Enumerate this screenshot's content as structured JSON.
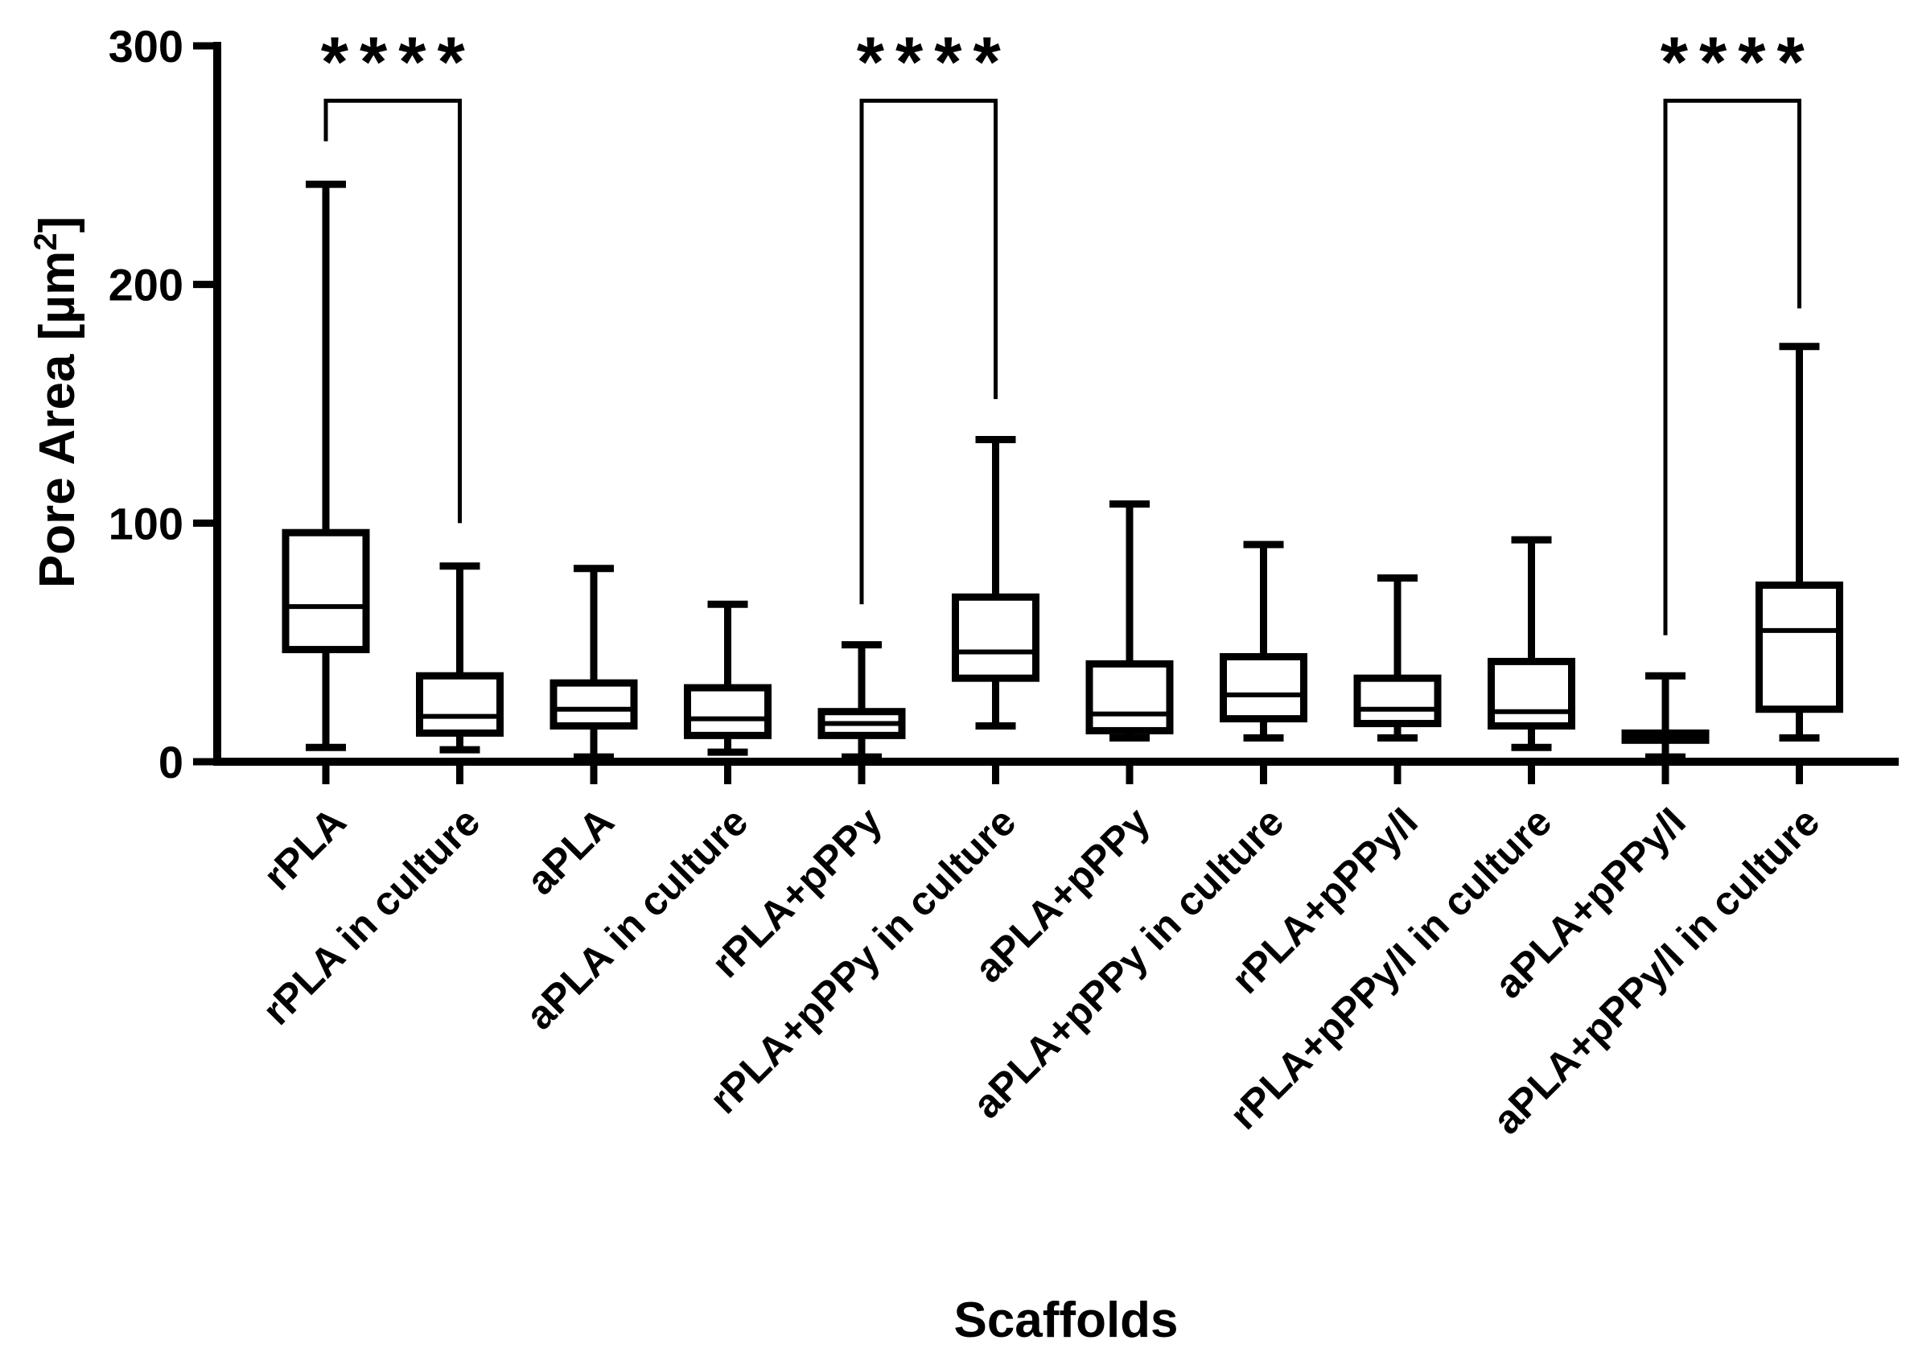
{
  "chart_data": {
    "type": "boxplot",
    "title": "",
    "xlabel": "Scaffolds",
    "ylabel": "Pore Area [µm",
    "ylabel_superscript": "2",
    "ylabel_close": "]",
    "ylim": [
      0,
      300
    ],
    "yticks": [
      0,
      100,
      200,
      300
    ],
    "ytick_labels": [
      "0",
      "100",
      "200",
      "300"
    ],
    "categories": [
      "rPLA",
      "rPLA in culture",
      "aPLA",
      "aPLA in culture",
      "rPLA+pPPy",
      "rPLA+pPPy in culture",
      "aPLA+pPPy",
      "aPLA+pPPy in culture",
      "rPLA+pPPy/I",
      "rPLA+pPPy/I in culture",
      "aPLA+pPPy/I",
      "aPLA+pPPy/I in culture"
    ],
    "boxes": [
      {
        "min": 6,
        "q1": 47,
        "median": 65,
        "q3": 96,
        "max": 242
      },
      {
        "min": 5,
        "q1": 12,
        "median": 19,
        "q3": 36,
        "max": 82
      },
      {
        "min": 2,
        "q1": 15,
        "median": 22,
        "q3": 33,
        "max": 81
      },
      {
        "min": 4,
        "q1": 11,
        "median": 18,
        "q3": 31,
        "max": 66
      },
      {
        "min": 2,
        "q1": 11,
        "median": 16,
        "q3": 21,
        "max": 49
      },
      {
        "min": 15,
        "q1": 35,
        "median": 46,
        "q3": 69,
        "max": 135
      },
      {
        "min": 10,
        "q1": 13,
        "median": 20,
        "q3": 41,
        "max": 108
      },
      {
        "min": 10,
        "q1": 18,
        "median": 28,
        "q3": 44,
        "max": 91
      },
      {
        "min": 10,
        "q1": 16,
        "median": 22,
        "q3": 35,
        "max": 77
      },
      {
        "min": 6,
        "q1": 15,
        "median": 21,
        "q3": 42,
        "max": 93
      },
      {
        "min": 2,
        "q1": 9,
        "median": 11,
        "q3": 12,
        "max": 36
      },
      {
        "min": 10,
        "q1": 22,
        "median": 55,
        "q3": 74,
        "max": 174
      }
    ],
    "significance": [
      {
        "from": 0,
        "to": 1,
        "label": "****",
        "bracket_top": 277,
        "from_end": 260,
        "to_end": 100
      },
      {
        "from": 4,
        "to": 5,
        "label": "****",
        "bracket_top": 277,
        "from_end": 66,
        "to_end": 152
      },
      {
        "from": 10,
        "to": 11,
        "label": "****",
        "bracket_top": 277,
        "from_end": 53,
        "to_end": 190
      }
    ]
  }
}
